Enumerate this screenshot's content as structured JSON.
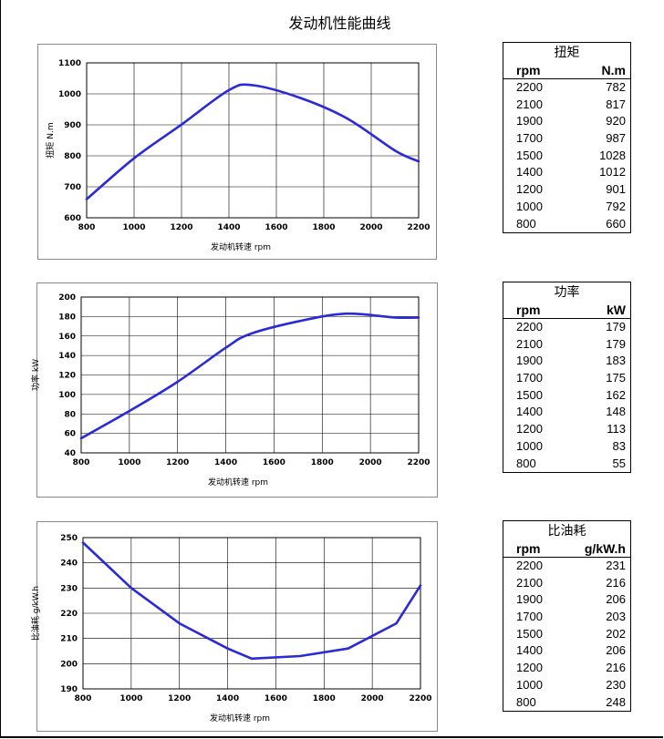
{
  "page": {
    "title": "发动机性能曲线"
  },
  "chart_data": [
    {
      "id": "torque",
      "type": "line",
      "ylabel": "扭矩 N.m",
      "xlabel": "发动机转速 rpm",
      "xlim": [
        800,
        2200
      ],
      "ylim": [
        600,
        1100
      ],
      "x_ticks": [
        800,
        1000,
        1200,
        1400,
        1600,
        1800,
        2000,
        2200
      ],
      "y_ticks": [
        600,
        700,
        800,
        900,
        1000,
        1100
      ],
      "grid": true,
      "smooth": true,
      "series": [
        {
          "x": [
            800,
            1000,
            1200,
            1400,
            1500,
            1700,
            1900,
            2100,
            2200
          ],
          "y": [
            660,
            792,
            901,
            1012,
            1028,
            987,
            920,
            817,
            782
          ]
        }
      ]
    },
    {
      "id": "power",
      "type": "line",
      "ylabel": "功率 kW",
      "xlabel": "发动机转速 rpm",
      "xlim": [
        800,
        2200
      ],
      "ylim": [
        40,
        200
      ],
      "x_ticks": [
        800,
        1000,
        1200,
        1400,
        1600,
        1800,
        2000,
        2200
      ],
      "y_ticks": [
        40,
        60,
        80,
        100,
        120,
        140,
        160,
        180,
        200
      ],
      "grid": true,
      "smooth": true,
      "series": [
        {
          "x": [
            800,
            1000,
            1200,
            1400,
            1500,
            1700,
            1900,
            2100,
            2200
          ],
          "y": [
            55,
            83,
            113,
            148,
            162,
            175,
            183,
            179,
            179
          ]
        }
      ]
    },
    {
      "id": "fuel",
      "type": "line",
      "ylabel": "比油耗 g/kW.h",
      "xlabel": "发动机转速 rpm",
      "xlim": [
        800,
        2200
      ],
      "ylim": [
        190,
        250
      ],
      "x_ticks": [
        800,
        1000,
        1200,
        1400,
        1600,
        1800,
        2000,
        2200
      ],
      "y_ticks": [
        190,
        200,
        210,
        220,
        230,
        240,
        250
      ],
      "grid": true,
      "smooth": false,
      "series": [
        {
          "x": [
            800,
            1000,
            1200,
            1400,
            1500,
            1700,
            1900,
            2100,
            2200
          ],
          "y": [
            248,
            230,
            216,
            206,
            202,
            203,
            206,
            216,
            231
          ]
        }
      ]
    }
  ],
  "tables": [
    {
      "id": "torque",
      "title": "扭矩",
      "col1": "rpm",
      "col2": "N.m",
      "rows": [
        [
          "2200",
          "782"
        ],
        [
          "2100",
          "817"
        ],
        [
          "1900",
          "920"
        ],
        [
          "1700",
          "987"
        ],
        [
          "1500",
          "1028"
        ],
        [
          "1400",
          "1012"
        ],
        [
          "1200",
          "901"
        ],
        [
          "1000",
          "792"
        ],
        [
          "800",
          "660"
        ]
      ]
    },
    {
      "id": "power",
      "title": "功率",
      "col1": "rpm",
      "col2": "kW",
      "rows": [
        [
          "2200",
          "179"
        ],
        [
          "2100",
          "179"
        ],
        [
          "1900",
          "183"
        ],
        [
          "1700",
          "175"
        ],
        [
          "1500",
          "162"
        ],
        [
          "1400",
          "148"
        ],
        [
          "1200",
          "113"
        ],
        [
          "1000",
          "83"
        ],
        [
          "800",
          "55"
        ]
      ]
    },
    {
      "id": "fuel",
      "title": "比油耗",
      "col1": "rpm",
      "col2": "g/kW.h",
      "rows": [
        [
          "2200",
          "231"
        ],
        [
          "2100",
          "216"
        ],
        [
          "1900",
          "206"
        ],
        [
          "1700",
          "203"
        ],
        [
          "1500",
          "202"
        ],
        [
          "1400",
          "206"
        ],
        [
          "1200",
          "216"
        ],
        [
          "1000",
          "230"
        ],
        [
          "800",
          "248"
        ]
      ]
    }
  ],
  "colors": {
    "series": "#2a2ad6",
    "grid": "#000000",
    "frame": "#888888"
  }
}
